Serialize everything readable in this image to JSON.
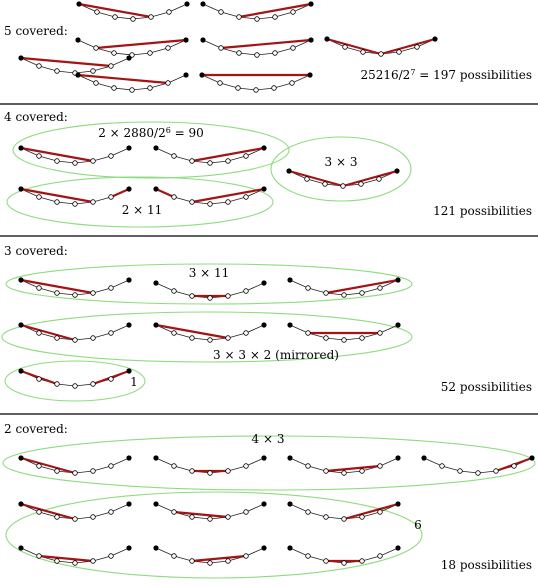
{
  "sections": [
    {
      "heading": "5 covered:",
      "total": "25216/2^7 = 197 possibilities",
      "groups": []
    },
    {
      "heading": "4 covered:",
      "total": "121 possibilities",
      "groups": [
        {
          "label": "2 × 2880/2^6 = 90"
        },
        {
          "label": "3 × 3"
        },
        {
          "label": "2 × 11"
        }
      ]
    },
    {
      "heading": "3 covered:",
      "total": "52 possibilities",
      "groups": [
        {
          "label": "3 × 11"
        },
        {
          "label": "3 × 3 × 2 (mirrored)"
        },
        {
          "label": "1"
        }
      ]
    },
    {
      "heading": "2 covered:",
      "total": "18 possibilities",
      "groups": [
        {
          "label": "4 × 3"
        },
        {
          "label": "6"
        }
      ]
    }
  ],
  "colors": {
    "cover_segment": "#a31515",
    "group_outline": "#8fdc7f",
    "chain": "#222222"
  }
}
